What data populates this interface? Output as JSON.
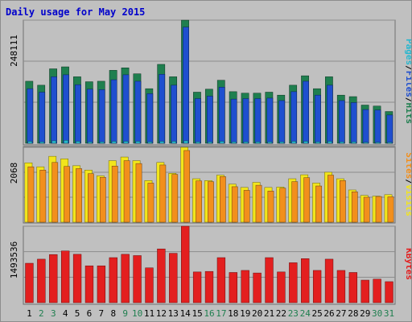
{
  "colors": {
    "background": "#c0c0c0",
    "panel": "#c0c0c0",
    "grid": "#8c8c8c",
    "title": "#0000cc",
    "hits": "#1f7f4f",
    "files": "#1f4fcf",
    "pages": "#27b7cf",
    "visits": "#f2e51c",
    "sites": "#f28f1c",
    "kbytes": "#e31f1f",
    "day_dark": "#000000",
    "day_weekend": "#1f7f4f"
  },
  "chart_data": {
    "type": "bar",
    "title": "Daily usage for May 2015",
    "categories": [
      "1",
      "2",
      "3",
      "4",
      "5",
      "6",
      "7",
      "8",
      "9",
      "10",
      "11",
      "12",
      "13",
      "14",
      "15",
      "16",
      "17",
      "18",
      "19",
      "20",
      "21",
      "22",
      "23",
      "24",
      "25",
      "26",
      "27",
      "28",
      "29",
      "30",
      "31"
    ],
    "weekend_days": [
      "2",
      "3",
      "9",
      "10",
      "16",
      "17",
      "23",
      "24",
      "30",
      "31"
    ],
    "panels": [
      {
        "max_label": "248111",
        "legend": [
          "Pages",
          "/",
          "Files",
          "/",
          "Hits"
        ],
        "ylim": [
          0,
          248111
        ],
        "series": [
          {
            "name": "Hits",
            "values": [
              125000,
              117000,
              150000,
              154000,
              134000,
              124000,
              125000,
              147000,
              152000,
              140000,
              110000,
              159000,
              134000,
              248000,
              103000,
              109000,
              127000,
              104000,
              101000,
              101000,
              103000,
              97000,
              117000,
              136000,
              110000,
              134000,
              97000,
              94000,
              77000,
              75000,
              64000
            ]
          },
          {
            "name": "Files",
            "values": [
              110000,
              103000,
              134000,
              138000,
              118000,
              109000,
              108000,
              128000,
              138000,
              125000,
              100000,
              139000,
              117000,
              234000,
              90000,
              95000,
              113000,
              89000,
              90000,
              90000,
              91000,
              86000,
              104000,
              125000,
              97000,
              117000,
              86000,
              82000,
              68000,
              67000,
              57000
            ]
          },
          {
            "name": "Pages",
            "values": [
              4000,
              3000,
              5000,
              6000,
              4000,
              3000,
              3000,
              4000,
              4000,
              4000,
              3000,
              4000,
              4000,
              5000,
              3000,
              3000,
              4000,
              3000,
              3000,
              3000,
              3000,
              3000,
              4000,
              4000,
              3000,
              4000,
              3000,
              3000,
              2000,
              2000,
              2000
            ]
          }
        ]
      },
      {
        "max_label": "2068",
        "legend": [
          "Sites",
          "/",
          "Visits"
        ],
        "ylim": [
          0,
          2068
        ],
        "series": [
          {
            "name": "Visits",
            "values": [
              1640,
              1530,
              1820,
              1750,
              1560,
              1440,
              1280,
              1700,
              1800,
              1700,
              1150,
              1650,
              1350,
              2068,
              1200,
              1150,
              1300,
              1050,
              960,
              1100,
              960,
              970,
              1200,
              1310,
              1080,
              1380,
              1200,
              890,
              740,
              720,
              760
            ]
          },
          {
            "name": "Sites",
            "values": [
              1530,
              1440,
              1650,
              1540,
              1480,
              1340,
              1240,
              1550,
              1700,
              1620,
              1080,
              1580,
              1320,
              1980,
              1140,
              1120,
              1260,
              980,
              880,
              1020,
              860,
              940,
              1120,
              1230,
              1000,
              1300,
              1150,
              840,
              690,
              710,
              700
            ]
          }
        ]
      },
      {
        "max_label": "1493536",
        "legend": [
          "KBytes"
        ],
        "ylim": [
          0,
          1493536
        ],
        "series": [
          {
            "name": "KBytes",
            "values": [
              770000,
              850000,
              940000,
              1010000,
              945000,
              720000,
              720000,
              880000,
              945000,
              920000,
              680000,
              1050000,
              965000,
              1493536,
              600000,
              610000,
              880000,
              590000,
              630000,
              580000,
              880000,
              600000,
              780000,
              860000,
              630000,
              850000,
              630000,
              590000,
              440000,
              460000,
              410000
            ]
          }
        ]
      }
    ]
  }
}
